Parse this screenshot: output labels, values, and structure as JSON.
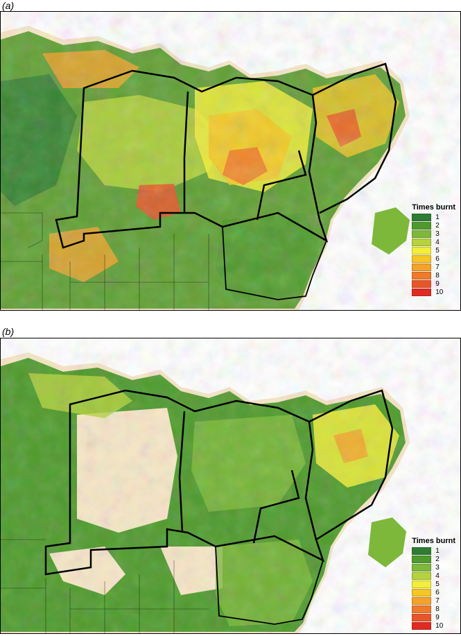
{
  "panels": [
    {
      "label": "(a)",
      "legend_title": "Times burnt"
    },
    {
      "label": "(b)",
      "legend_title": "Times burnt"
    }
  ],
  "legend": {
    "classes": [
      "1",
      "2",
      "3",
      "4",
      "5",
      "6",
      "7",
      "8",
      "9",
      "10"
    ],
    "colors": [
      "#2e7d32",
      "#4e9a2c",
      "#7db83a",
      "#b6d23c",
      "#f2ee3a",
      "#f5c624",
      "#f3a22a",
      "#ef7a2a",
      "#e9552a",
      "#e02b22"
    ]
  },
  "colors": {
    "background_land": "#f6e6c6",
    "sea": "#ffffff",
    "boundary": "#000000"
  }
}
